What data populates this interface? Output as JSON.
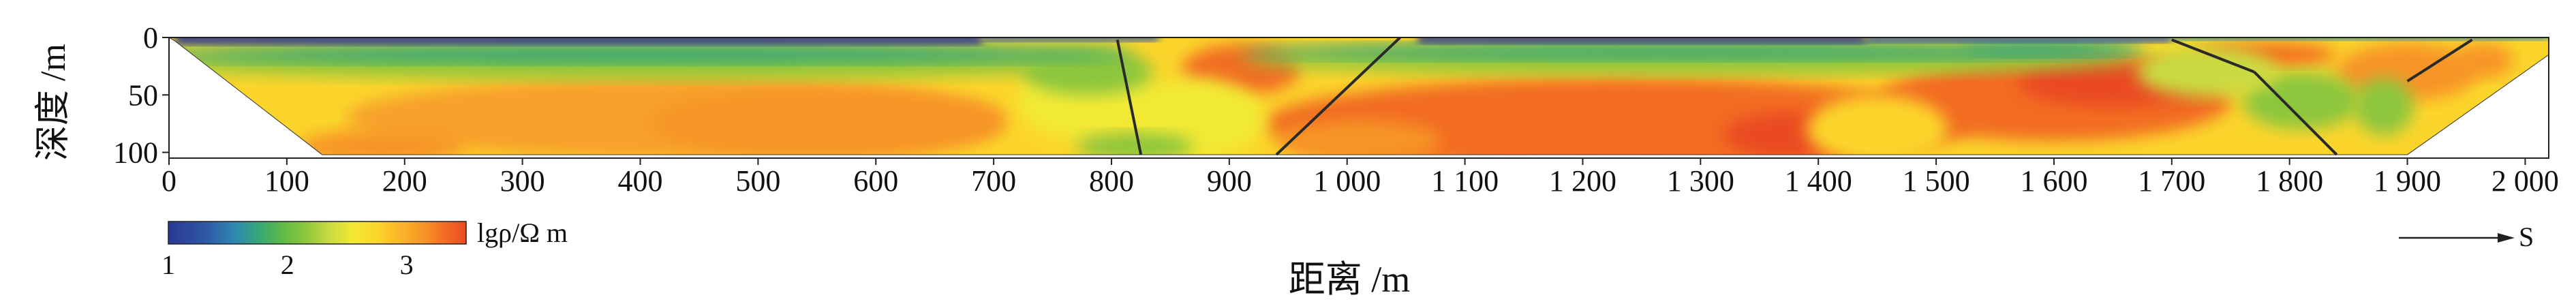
{
  "axes": {
    "xlabel": "距离 /m",
    "ylabel": "深度 /m",
    "x_ticks": [
      "0",
      "100",
      "200",
      "300",
      "400",
      "500",
      "600",
      "700",
      "800",
      "900",
      "1 000",
      "1 100",
      "1 200",
      "1 300",
      "1 400",
      "1 500",
      "1 600",
      "1 700",
      "1 800",
      "1 900",
      "2 000"
    ],
    "y_ticks": [
      "0",
      "50",
      "100"
    ],
    "x_range": [
      0,
      2020
    ],
    "y_range": [
      0,
      105
    ]
  },
  "colorbar": {
    "label": "lgρ/Ω m",
    "ticks": [
      "1",
      "2",
      "3"
    ],
    "range": [
      1,
      3.5
    ],
    "colors": [
      "#2b3990",
      "#2d56a4",
      "#2f7fb8",
      "#2fa0b0",
      "#3ba66f",
      "#5db947",
      "#8cc63e",
      "#c2d843",
      "#f2e934",
      "#fbd52c",
      "#fbb52a",
      "#f79428",
      "#f26c24",
      "#ea4a24"
    ]
  },
  "direction": {
    "label": "S"
  },
  "faults": [
    {
      "x1": 805,
      "y1": 2,
      "x2": 825,
      "y2": 102
    },
    {
      "x1": 1045,
      "y1": 0,
      "x2": 940,
      "y2": 102
    },
    {
      "x1": 1700,
      "y1": 2,
      "x2": 1770,
      "y2": 30
    },
    {
      "x1": 1770,
      "y1": 30,
      "x2": 1840,
      "y2": 102
    },
    {
      "x1": 1900,
      "y1": 38,
      "x2": 1955,
      "y2": 2
    }
  ]
}
